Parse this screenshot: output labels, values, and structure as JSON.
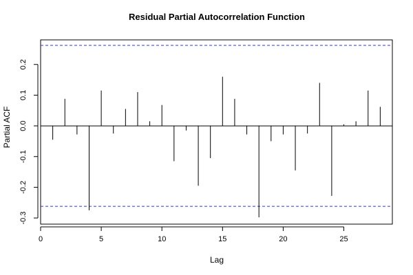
{
  "chart_data": {
    "type": "bar",
    "title": "Residual Partial Autocorrelation Function",
    "xlabel": "Lag",
    "ylabel": "Partial ACF",
    "xlim": [
      0,
      29
    ],
    "ylim": [
      -0.32,
      0.28
    ],
    "x_ticks": [
      0,
      5,
      10,
      15,
      20,
      25
    ],
    "y_ticks": [
      -0.3,
      -0.2,
      -0.1,
      0.0,
      0.1,
      0.2
    ],
    "grid": false,
    "confidence_band": {
      "upper": 0.262,
      "lower": -0.262,
      "color": "#3333cc",
      "style": "dashed"
    },
    "series": [
      {
        "lags": [
          1,
          2,
          3,
          4,
          5,
          6,
          7,
          8,
          9,
          10,
          11,
          12,
          13,
          14,
          15,
          16,
          17,
          18,
          19,
          20,
          21,
          22,
          23,
          24,
          25,
          26,
          27,
          28
        ],
        "values": [
          -0.045,
          0.088,
          -0.028,
          -0.275,
          0.115,
          -0.025,
          0.055,
          0.11,
          0.015,
          0.068,
          -0.115,
          -0.015,
          -0.195,
          -0.105,
          0.16,
          0.088,
          -0.028,
          -0.298,
          -0.05,
          -0.028,
          -0.145,
          -0.025,
          0.14,
          -0.228,
          0.005,
          0.015,
          0.115,
          0.062
        ]
      }
    ]
  }
}
